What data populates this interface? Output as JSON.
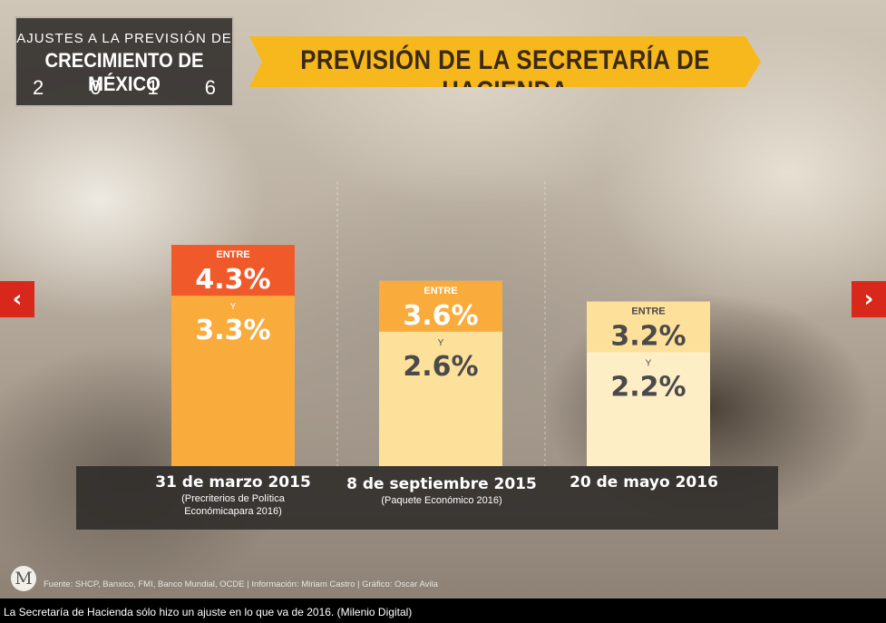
{
  "series_title": {
    "line1": "AJUSTES A LA PREVISIÓN DE",
    "line2": "CRECIMIENTO DE MÉXICO",
    "year_digits": [
      "2",
      "0",
      "1",
      "6"
    ]
  },
  "banner_title": "PREVISIÓN DE LA SECRETARÍA DE HACIENDA",
  "chart_data": {
    "type": "bar",
    "title": "PREVISIÓN DE LA SECRETARÍA DE HACIENDA",
    "categories": [
      "31 de marzo 2015",
      "8 de septiembre 2015",
      "20 de mayo 2016"
    ],
    "sublabels": [
      [
        "(Precriterios de Política",
        "Económicapara 2016)"
      ],
      [
        "(Paquete Económico 2016)"
      ],
      []
    ],
    "series": [
      {
        "values": [
          4.3,
          3.6,
          3.2
        ]
      },
      {
        "values": [
          3.3,
          2.6,
          2.2
        ]
      }
    ],
    "value_labels_upper": [
      "4.3%",
      "3.6%",
      "3.2%"
    ],
    "value_labels_lower": [
      "3.3%",
      "2.6%",
      "2.2%"
    ],
    "word_between": "ENTRE",
    "word_and": "Y",
    "ylim": [
      0,
      5.5
    ],
    "xlabel": "",
    "ylabel": "",
    "grid": false,
    "colors": {
      "upper": [
        "#f05a2b",
        "#f9ab3c",
        "#fde19a"
      ],
      "lower": [
        "#f9ab3c",
        "#fde19a",
        "#fdeec6"
      ],
      "upper_text": [
        "#ffffff",
        "#ffffff",
        "#4a4a4a"
      ],
      "lower_text": [
        "#ffffff",
        "#4a4a4a",
        "#4a4a4a"
      ]
    }
  },
  "nav": {
    "prev_icon": "‹",
    "next_icon": "›"
  },
  "logo_letter": "M",
  "source_text": "Fuente: SHCP, Banxico, FMI, Banco Mundial, OCDE | Información: Miriam Castro | Gráfico: Oscar Avila",
  "caption": "La Secretaría de Hacienda sólo hizo un ajuste en lo que va de 2016. (Milenio Digital)"
}
